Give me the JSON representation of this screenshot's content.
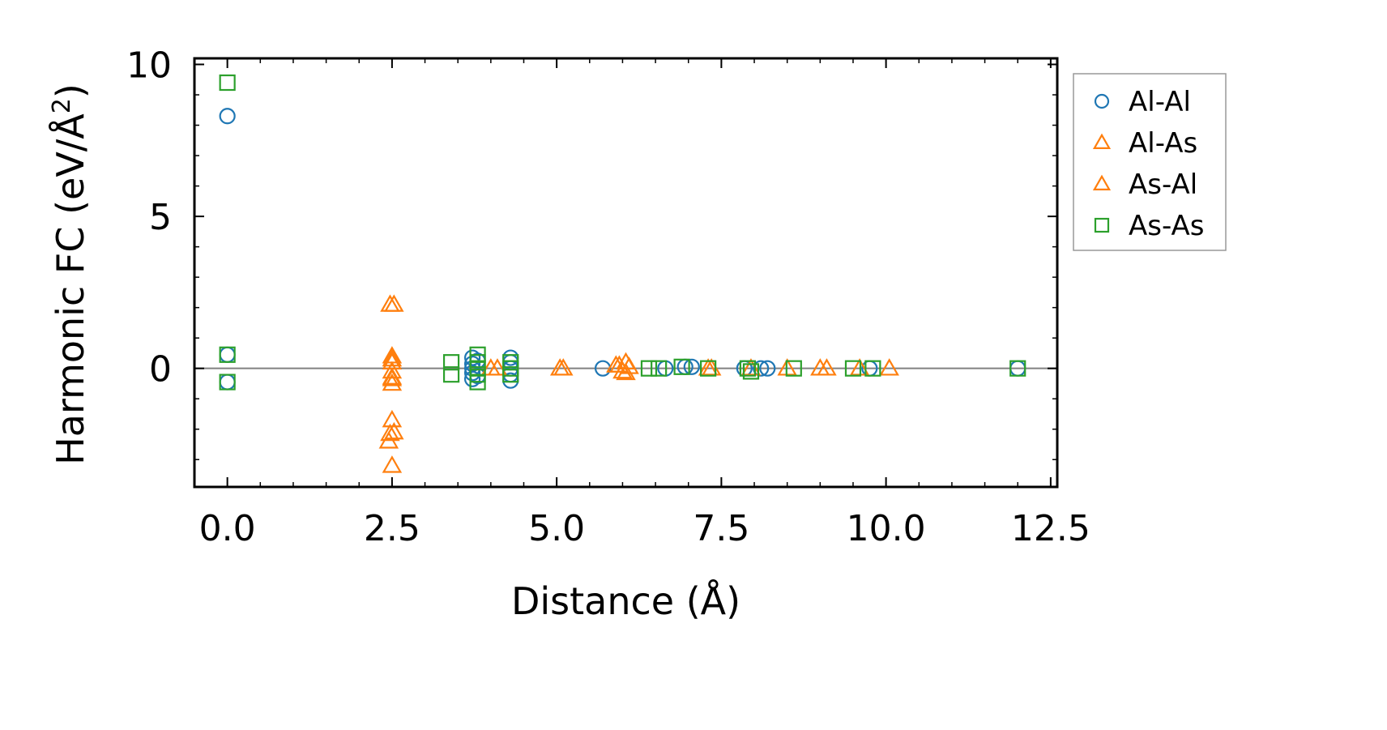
{
  "chart_data": {
    "type": "scatter",
    "title": "",
    "xlabel": "Distance (Å)",
    "ylabel_main": "Harmonic FC (eV/Å",
    "ylabel_sup": "2",
    "ylabel_close": ")",
    "xlim": [
      -0.5,
      12.6
    ],
    "ylim": [
      -3.9,
      10.2
    ],
    "xticks": [
      0.0,
      2.5,
      5.0,
      7.5,
      10.0,
      12.5
    ],
    "xtick_labels": [
      "0.0",
      "2.5",
      "5.0",
      "7.5",
      "10.0",
      "12.5"
    ],
    "yticks": [
      0,
      5,
      10
    ],
    "ytick_labels": [
      "0",
      "5",
      "10"
    ],
    "x_minor_step": 0.5,
    "y_minor_step": 1,
    "reference_line_y": 0,
    "legend_position": "outside-right-top",
    "series": [
      {
        "name": "Al-Al",
        "marker": "circle",
        "color": "#1f77b4",
        "points": [
          [
            0.0,
            8.3
          ],
          [
            0.0,
            0.45
          ],
          [
            0.0,
            -0.45
          ],
          [
            3.72,
            0.35
          ],
          [
            3.72,
            0.15
          ],
          [
            3.72,
            0.0
          ],
          [
            3.72,
            -0.15
          ],
          [
            3.72,
            -0.35
          ],
          [
            3.8,
            0.25
          ],
          [
            3.8,
            -0.25
          ],
          [
            4.3,
            0.35
          ],
          [
            4.3,
            0.2
          ],
          [
            4.3,
            0.0
          ],
          [
            4.3,
            -0.2
          ],
          [
            4.3,
            -0.4
          ],
          [
            5.7,
            0.0
          ],
          [
            6.65,
            0.0
          ],
          [
            6.95,
            0.05
          ],
          [
            7.05,
            0.05
          ],
          [
            7.85,
            0.0
          ],
          [
            8.1,
            0.0
          ],
          [
            8.2,
            0.0
          ],
          [
            9.75,
            0.0
          ],
          [
            12.0,
            0.0
          ]
        ]
      },
      {
        "name": "Al-As",
        "marker": "triangle",
        "color": "#ff7f0e",
        "points": [
          [
            2.47,
            2.1
          ],
          [
            2.53,
            2.1
          ],
          [
            2.5,
            0.4
          ],
          [
            2.5,
            0.2
          ],
          [
            2.5,
            -0.1
          ],
          [
            2.5,
            -0.35
          ],
          [
            2.5,
            -0.5
          ],
          [
            2.5,
            -1.7
          ],
          [
            2.47,
            -2.15
          ],
          [
            2.53,
            -2.1
          ],
          [
            2.45,
            -2.4
          ],
          [
            2.5,
            -3.2
          ],
          [
            4.1,
            0.0
          ],
          [
            5.1,
            0.0
          ],
          [
            5.9,
            0.1
          ],
          [
            6.05,
            0.2
          ],
          [
            6.05,
            -0.15
          ],
          [
            7.3,
            0.0
          ],
          [
            8.5,
            0.0
          ],
          [
            9.0,
            0.0
          ],
          [
            9.6,
            0.0
          ]
        ]
      },
      {
        "name": "As-Al",
        "marker": "triangle",
        "color": "#ff7f0e",
        "points": [
          [
            2.5,
            0.3
          ],
          [
            2.5,
            -0.3
          ],
          [
            4.0,
            0.0
          ],
          [
            5.05,
            0.0
          ],
          [
            5.95,
            0.1
          ],
          [
            6.0,
            -0.1
          ],
          [
            6.1,
            0.05
          ],
          [
            7.35,
            0.0
          ],
          [
            7.95,
            0.0
          ],
          [
            9.1,
            0.0
          ],
          [
            10.05,
            0.0
          ]
        ]
      },
      {
        "name": "As-As",
        "marker": "square",
        "color": "#2ca02c",
        "points": [
          [
            0.0,
            9.4
          ],
          [
            0.0,
            0.45
          ],
          [
            0.0,
            -0.45
          ],
          [
            3.4,
            0.2
          ],
          [
            3.4,
            -0.2
          ],
          [
            3.8,
            0.45
          ],
          [
            3.8,
            0.2
          ],
          [
            3.8,
            0.0
          ],
          [
            3.8,
            -0.2
          ],
          [
            3.8,
            -0.45
          ],
          [
            4.3,
            0.2
          ],
          [
            4.3,
            0.0
          ],
          [
            4.3,
            -0.2
          ],
          [
            6.4,
            0.0
          ],
          [
            6.55,
            0.0
          ],
          [
            6.9,
            0.05
          ],
          [
            7.3,
            0.0
          ],
          [
            7.9,
            0.0
          ],
          [
            7.95,
            -0.1
          ],
          [
            8.6,
            0.0
          ],
          [
            9.5,
            0.0
          ],
          [
            9.8,
            0.0
          ],
          [
            12.0,
            0.0
          ]
        ]
      }
    ]
  }
}
